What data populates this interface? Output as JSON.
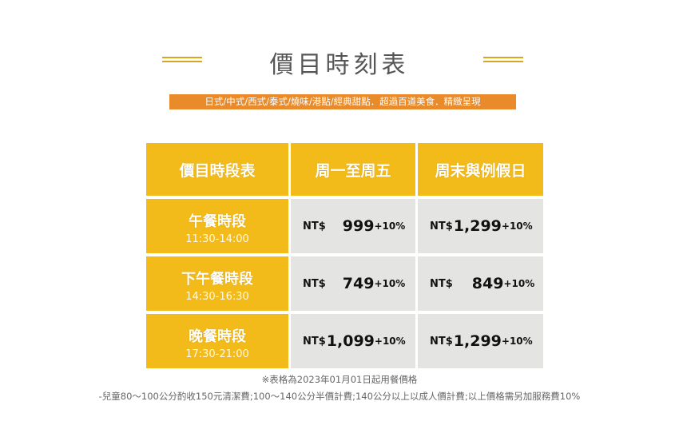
{
  "title": "價目時刻表",
  "banner": "日式/中式/西式/泰式/燒味/港點/經典甜點．超過百道美食．精緻呈現",
  "table": {
    "headers": [
      "價目時段表",
      "周一至周五",
      "周末與例假日"
    ],
    "rows": [
      {
        "period": "午餐時段",
        "time": "11:30-14:00",
        "weekday": {
          "currency": "NT$",
          "amount": "999",
          "service": "+10%"
        },
        "weekend": {
          "currency": "NT$",
          "amount": "1,299",
          "service": "+10%"
        }
      },
      {
        "period": "下午餐時段",
        "time": "14:30-16:30",
        "weekday": {
          "currency": "NT$",
          "amount": "749",
          "service": "+10%"
        },
        "weekend": {
          "currency": "NT$",
          "amount": "849",
          "service": "+10%"
        }
      },
      {
        "period": "晚餐時段",
        "time": "17:30-21:00",
        "weekday": {
          "currency": "NT$",
          "amount": "1,099",
          "service": "+10%"
        },
        "weekend": {
          "currency": "NT$",
          "amount": "1,299",
          "service": "+10%"
        }
      }
    ]
  },
  "notes": {
    "effective": "※表格為2023年01月01日起用餐價格",
    "children": "-兒童80～100公分酌收150元清潔費;100～140公分半價計費;140公分以上以成人價計費;以上價格需另加服務費10%"
  },
  "colors": {
    "accent": "#f2bb1a",
    "banner": "#e98b2a",
    "price_bg": "#e4e4e2",
    "deco": "#d9a722"
  }
}
